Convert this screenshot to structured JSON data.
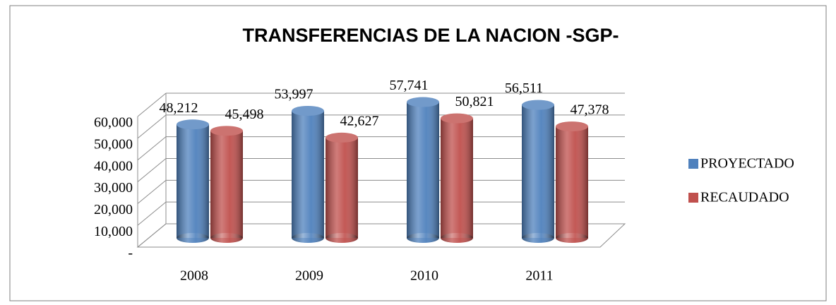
{
  "chart_data": {
    "type": "bar",
    "title": "TRANSFERENCIAS DE LA NACION  -SGP-",
    "categories": [
      "2008",
      "2009",
      "2010",
      "2011"
    ],
    "series": [
      {
        "name": "PROYECTADO",
        "color": "#4f81bd",
        "values": [
          48212,
          53997,
          57741,
          56511
        ],
        "value_labels": [
          "48,212",
          "53,997",
          "57,741",
          "56,511"
        ]
      },
      {
        "name": "RECAUDADO",
        "color": "#c0504d",
        "values": [
          45498,
          42627,
          50821,
          47378
        ],
        "value_labels": [
          "45,498",
          "42,627",
          "50,821",
          "47,378"
        ]
      }
    ],
    "ylim": [
      0,
      60000
    ],
    "yticks": [
      {
        "value": 0,
        "label": "-"
      },
      {
        "value": 10000,
        "label": "10,000"
      },
      {
        "value": 20000,
        "label": "20,000"
      },
      {
        "value": 30000,
        "label": "30,000"
      },
      {
        "value": 40000,
        "label": "40,000"
      },
      {
        "value": 50000,
        "label": "50,000"
      },
      {
        "value": 60000,
        "label": "60,000"
      }
    ],
    "grid": true,
    "legend": "right"
  }
}
